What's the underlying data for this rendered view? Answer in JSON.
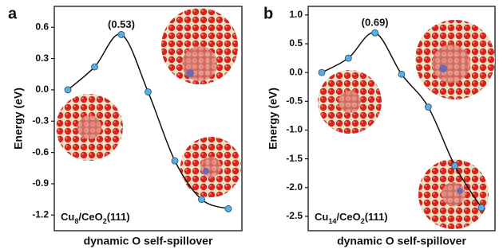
{
  "chart_data": [
    {
      "type": "line",
      "panel": "a",
      "ylabel": "Energy (eV)",
      "xlabel": "dynamic O self-spillover",
      "label_parts": [
        "Cu",
        "8",
        "/CeO",
        "2",
        "(111)"
      ],
      "annotation": "(0.53)",
      "categories": [
        null,
        null,
        null,
        null,
        null,
        null,
        null
      ],
      "values": [
        0.0,
        0.22,
        0.53,
        -0.02,
        -0.68,
        -1.05,
        -1.14
      ],
      "color": "#5aaee0",
      "line_color": "#111111",
      "ylim": [
        -1.35,
        0.8
      ],
      "yticks": [
        {
          "value": 0.6,
          "label": "0.6"
        },
        {
          "value": 0.3,
          "label": "0.3"
        },
        {
          "value": 0,
          "label": "0.0"
        },
        {
          "value": -0.3,
          "label": "-0.3"
        },
        {
          "value": -0.6,
          "label": "-0.6"
        },
        {
          "value": -0.9,
          "label": "-0.9"
        },
        {
          "value": -1.2,
          "label": "-1.2"
        }
      ]
    },
    {
      "type": "line",
      "panel": "b",
      "ylabel": "Energy (eV)",
      "xlabel": "dynamic O self-spillover",
      "label_parts": [
        "Cu",
        "14",
        "/CeO",
        "2",
        "(111)"
      ],
      "annotation": "(0.69)",
      "categories": [
        null,
        null,
        null,
        null,
        null,
        null,
        null
      ],
      "values": [
        0.0,
        0.25,
        0.69,
        -0.03,
        -0.6,
        -1.62,
        -2.35
      ],
      "color": "#5aaee0",
      "line_color": "#111111",
      "ylim": [
        -2.75,
        1.15
      ],
      "yticks": [
        {
          "value": 1,
          "label": "1.0"
        },
        {
          "value": 0.5,
          "label": "0.5"
        },
        {
          "value": 0,
          "label": "0.0"
        },
        {
          "value": -0.5,
          "label": "-0.5"
        },
        {
          "value": -1,
          "label": "-1.0"
        },
        {
          "value": -1.5,
          "label": "-1.5"
        },
        {
          "value": -2,
          "label": "-2.0"
        },
        {
          "value": -2.5,
          "label": "-2.5"
        }
      ]
    }
  ]
}
